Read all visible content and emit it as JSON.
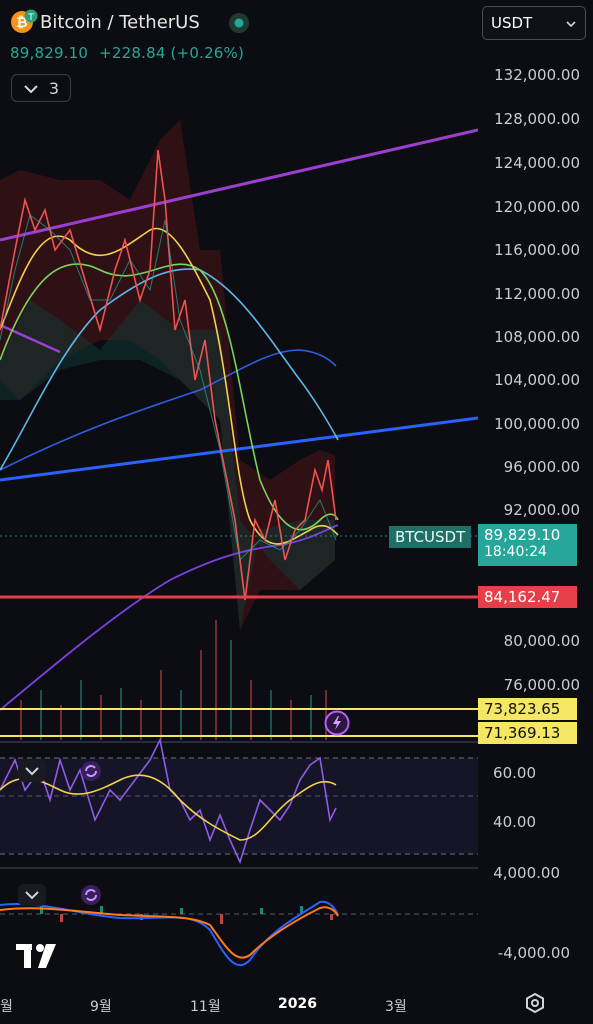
{
  "header": {
    "title": "Bitcoin / TetherUS",
    "last_price": "89,829.10",
    "change": "+228.84 (+0.26%)",
    "indicator_count": "3"
  },
  "symbol_select": {
    "value": "USDT"
  },
  "price_axis": {
    "labels": [
      "132,000.00",
      "128,000.00",
      "124,000.00",
      "120,000.00",
      "116,000.00",
      "112,000.00",
      "108,000.00",
      "104,000.00",
      "100,000.00",
      "96,000.00",
      "92,000.00",
      "80,000.00",
      "76,000.00"
    ]
  },
  "tags": {
    "symbol": "BTCUSDT",
    "price": "89,829.10",
    "countdown": "18:40:24",
    "support": "84,162.47",
    "level_1": "73,823.65",
    "level_2": "71,369.13"
  },
  "rsi_axis": {
    "labels": [
      "60.00",
      "40.00"
    ]
  },
  "macd_axis": {
    "labels": [
      "4,000.00",
      "-4,000.00"
    ]
  },
  "time_axis": {
    "labels": [
      "월",
      "9월",
      "11월",
      "2026",
      "3월"
    ]
  },
  "colors": {
    "up": "#26a69a",
    "down": "#ef5350",
    "support_line": "#e5404a",
    "yellow_line": "#f5e663",
    "purple_trend": "#9c3fd1",
    "blue_trend": "#2962ff"
  },
  "icons": {
    "btc": "bitcoin-icon",
    "tether": "tether-icon",
    "chevron": "chevron-down-icon",
    "settings": "settings-icon",
    "replay": "lightning-icon",
    "logo": "tradingview-logo"
  }
}
